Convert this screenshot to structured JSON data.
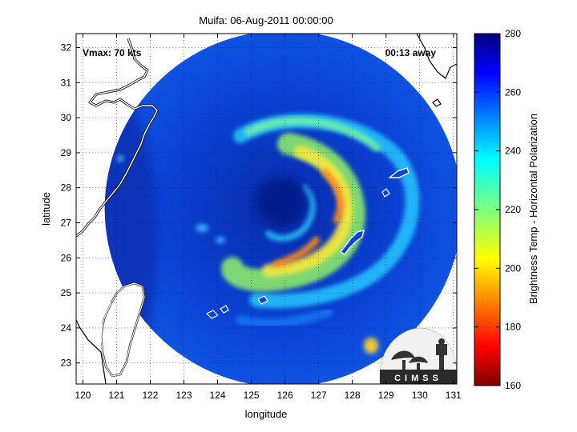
{
  "title": "Muifa: 06-Aug-2011 00:00:00",
  "annotations": {
    "vmax": "Vmax: 70 kts",
    "time_offset": "00:13 away"
  },
  "map": {
    "xlabel": "longitude",
    "ylabel": "latitude",
    "x_ticks": [
      120,
      121,
      122,
      123,
      124,
      125,
      126,
      127,
      128,
      129,
      130,
      131
    ],
    "y_ticks": [
      23,
      24,
      25,
      26,
      27,
      28,
      29,
      30,
      31,
      32
    ],
    "xlim": [
      119.8,
      131.1
    ],
    "ylim": [
      22.4,
      32.4
    ],
    "grid": "dotted",
    "swath_center": [
      125.95,
      27.4
    ],
    "swath_radius_deg_lon": 5.3,
    "storm_center": [
      125.9,
      27.6
    ]
  },
  "colorbar": {
    "label": "Brightness Temp - Horizontal Polarization",
    "ticks": [
      160,
      180,
      200,
      220,
      240,
      260,
      280
    ],
    "range": [
      160,
      280
    ],
    "colormap": "jet"
  },
  "logo": {
    "text": "CIMSS",
    "name": "cimss-logo"
  },
  "colors": {
    "coastline": "#ffffff",
    "land_fill": "#ffffff",
    "background": "#ffffff",
    "swath_base": "#0a3cc8",
    "eye": "#041a8c"
  }
}
